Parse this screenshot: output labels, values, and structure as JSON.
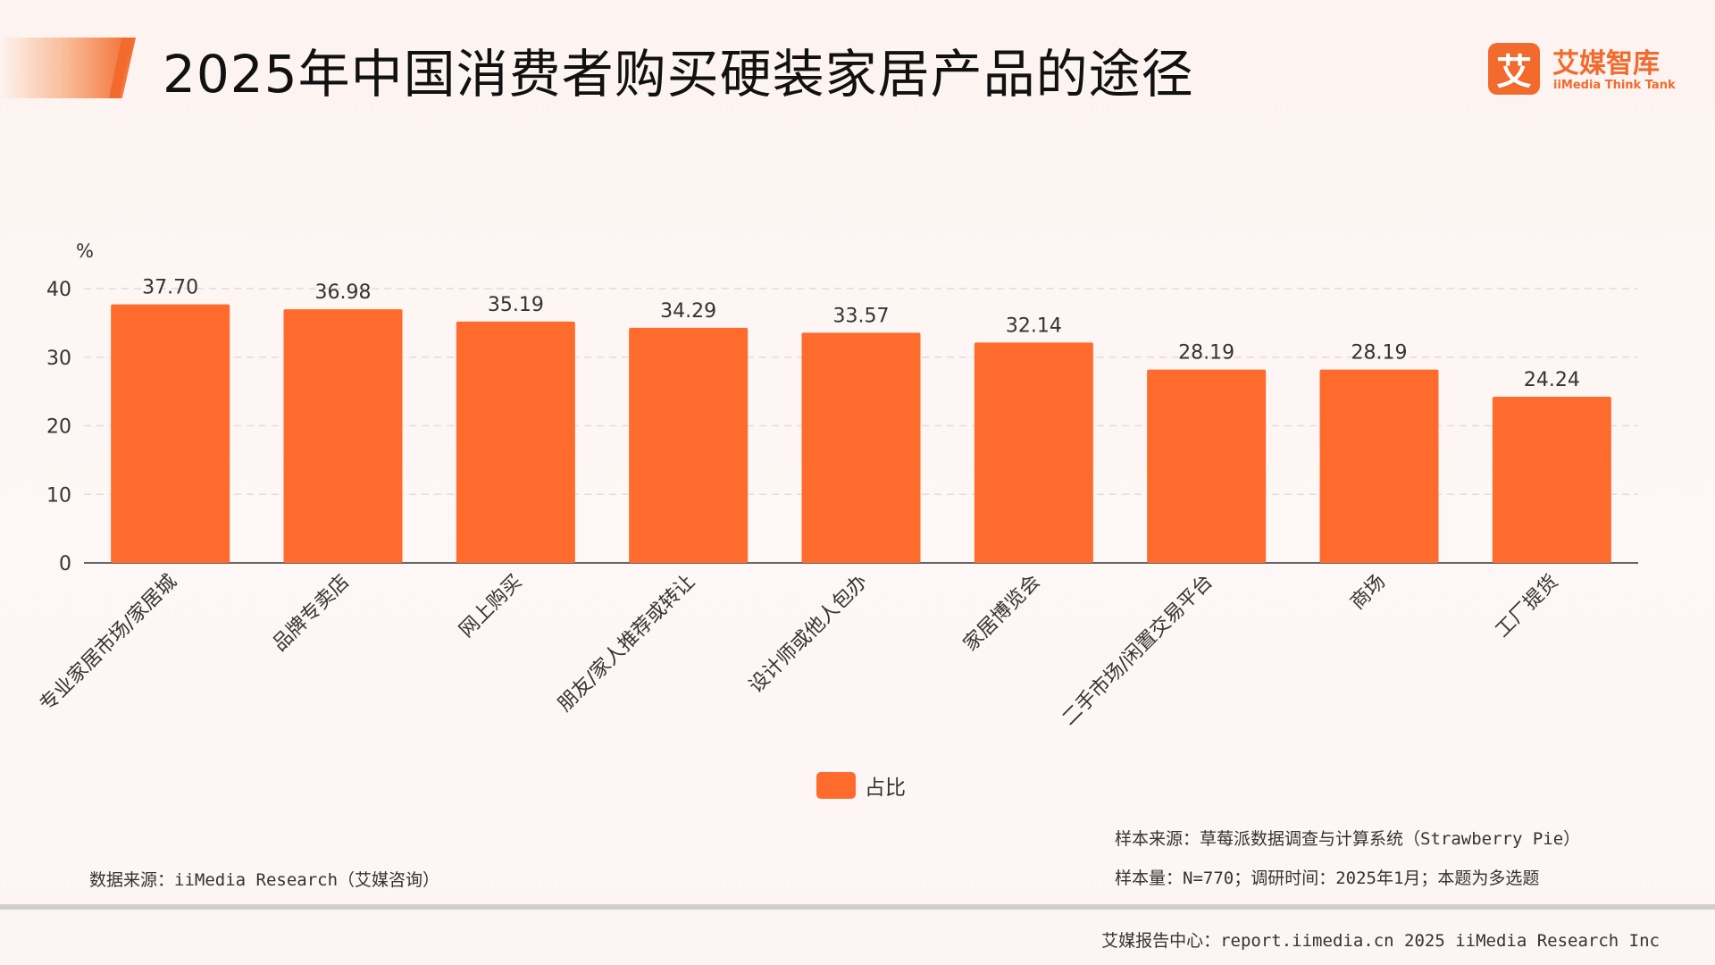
{
  "header": {
    "title": "2025年中国消费者购买硬装家居产品的途径",
    "logo_mark": "艾",
    "logo_cn": "艾媒智库",
    "logo_en": "iiMedia Think Tank"
  },
  "chart_data": {
    "type": "bar",
    "title": "2025年中国消费者购买硬装家居产品的途径",
    "ylabel": "%",
    "ylim": [
      0,
      40
    ],
    "yticks": [
      0,
      10,
      20,
      30,
      40
    ],
    "categories": [
      "专业家居市场/家居城",
      "品牌专卖店",
      "网上购买",
      "朋友/家人推荐或转让",
      "设计师或他人包办",
      "家居博览会",
      "二手市场/闲置交易平台",
      "商场",
      "工厂提货"
    ],
    "series": [
      {
        "name": "占比",
        "values": [
          37.7,
          36.98,
          35.19,
          34.29,
          33.57,
          32.14,
          28.19,
          28.19,
          24.24
        ],
        "color": "#ff6b2c"
      }
    ],
    "data_labels": [
      "37.70",
      "36.98",
      "35.19",
      "34.29",
      "33.57",
      "32.14",
      "28.19",
      "28.19",
      "24.24"
    ],
    "grid": true,
    "legend_position": "bottom-center"
  },
  "notes": {
    "data_source": "数据来源：iiMedia Research（艾媒咨询）",
    "sample_source": "样本来源：草莓派数据调查与计算系统（Strawberry Pie）",
    "sample_size": "样本量：N=770；调研时间：2025年1月；本题为多选题"
  },
  "footer": {
    "text": "艾媒报告中心：report.iimedia.cn   2025 iiMedia Research Inc"
  }
}
